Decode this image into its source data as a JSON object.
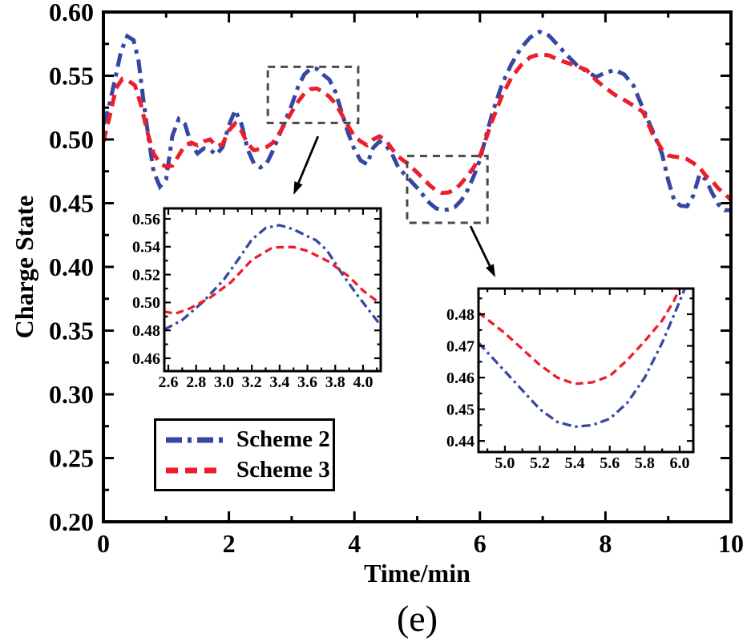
{
  "figure": {
    "caption": "(e)",
    "x_axis_title": "Time/min",
    "y_axis_title": "Charge State",
    "colors": {
      "scheme2": "#3647A3",
      "scheme3": "#EC1E2A",
      "zoom_box": "#4a4a4a",
      "axis": "#000000"
    }
  },
  "legend": {
    "items": [
      {
        "label": "Scheme 2",
        "color": "#3647A3",
        "dash": "20 7 5 7"
      },
      {
        "label": "Scheme 3",
        "color": "#EC1E2A",
        "dash": "15 9"
      }
    ]
  },
  "chart_data": [
    {
      "id": "main",
      "type": "line",
      "title": "",
      "xlabel": "Time/min",
      "ylabel": "Charge State",
      "xlim": [
        0,
        10
      ],
      "ylim": [
        0.2,
        0.6
      ],
      "grid": false,
      "legend_position": "lower-left",
      "xticks": {
        "values": [
          0,
          2,
          4,
          6,
          8,
          10
        ],
        "labels": [
          "0",
          "2",
          "4",
          "6",
          "8",
          "10"
        ],
        "minor": [
          1,
          3,
          5,
          7,
          9
        ]
      },
      "yticks": {
        "values": [
          0.2,
          0.25,
          0.3,
          0.35,
          0.4,
          0.45,
          0.5,
          0.55,
          0.6
        ],
        "labels": [
          "0.20",
          "0.25",
          "0.30",
          "0.35",
          "0.40",
          "0.45",
          "0.50",
          "0.55",
          "0.60"
        ],
        "minor": [
          0.225,
          0.275,
          0.325,
          0.375,
          0.425,
          0.475,
          0.525,
          0.575
        ]
      },
      "series": [
        {
          "name": "Scheme 2",
          "color": "#3647A3",
          "style": "dashdot",
          "x": [
            0,
            0.08,
            0.18,
            0.28,
            0.38,
            0.48,
            0.56,
            0.64,
            0.72,
            0.8,
            0.9,
            1.0,
            1.1,
            1.2,
            1.3,
            1.4,
            1.5,
            1.6,
            1.7,
            1.8,
            1.9,
            2.0,
            2.1,
            2.2,
            2.3,
            2.4,
            2.5,
            2.6,
            2.7,
            2.8,
            2.9,
            3.0,
            3.1,
            3.2,
            3.3,
            3.4,
            3.5,
            3.6,
            3.7,
            3.8,
            3.9,
            4.0,
            4.1,
            4.2,
            4.3,
            4.4,
            4.5,
            4.6,
            4.7,
            4.85,
            5.0,
            5.1,
            5.2,
            5.3,
            5.4,
            5.5,
            5.6,
            5.7,
            5.8,
            5.9,
            6.0,
            6.1,
            6.2,
            6.35,
            6.5,
            6.65,
            6.8,
            6.95,
            7.1,
            7.25,
            7.4,
            7.55,
            7.7,
            7.85,
            8.0,
            8.15,
            8.3,
            8.45,
            8.6,
            8.75,
            8.9,
            9.0,
            9.1,
            9.2,
            9.3,
            9.4,
            9.5,
            9.6,
            9.7,
            9.8,
            9.9,
            10
          ],
          "y": [
            0.512,
            0.524,
            0.546,
            0.569,
            0.581,
            0.578,
            0.562,
            0.53,
            0.501,
            0.475,
            0.463,
            0.469,
            0.503,
            0.516,
            0.512,
            0.496,
            0.489,
            0.493,
            0.492,
            0.488,
            0.494,
            0.511,
            0.523,
            0.512,
            0.492,
            0.481,
            0.478,
            0.481,
            0.491,
            0.503,
            0.515,
            0.527,
            0.541,
            0.551,
            0.5555,
            0.5555,
            0.551,
            0.547,
            0.537,
            0.521,
            0.505,
            0.492,
            0.4835,
            0.4805,
            0.4935,
            0.4985,
            0.4955,
            0.4885,
            0.478,
            0.47,
            0.462,
            0.456,
            0.45,
            0.446,
            0.4445,
            0.445,
            0.447,
            0.452,
            0.46,
            0.471,
            0.484,
            0.503,
            0.521,
            0.543,
            0.559,
            0.5715,
            0.58,
            0.5845,
            0.5815,
            0.5735,
            0.5655,
            0.558,
            0.5535,
            0.549,
            0.5525,
            0.5545,
            0.551,
            0.542,
            0.524,
            0.507,
            0.489,
            0.468,
            0.4515,
            0.448,
            0.4475,
            0.456,
            0.4725,
            0.4685,
            0.458,
            0.449,
            0.4445,
            0.4445
          ]
        },
        {
          "name": "Scheme 3",
          "color": "#EC1E2A",
          "style": "dash",
          "x": [
            0,
            0.1,
            0.2,
            0.3,
            0.4,
            0.5,
            0.6,
            0.7,
            0.8,
            0.9,
            1.0,
            1.1,
            1.2,
            1.3,
            1.4,
            1.5,
            1.6,
            1.7,
            1.8,
            1.9,
            2.0,
            2.1,
            2.2,
            2.3,
            2.4,
            2.5,
            2.6,
            2.7,
            2.8,
            2.9,
            3.0,
            3.1,
            3.2,
            3.3,
            3.4,
            3.5,
            3.6,
            3.7,
            3.8,
            3.9,
            4.0,
            4.1,
            4.2,
            4.3,
            4.4,
            4.5,
            4.6,
            4.7,
            4.85,
            5.0,
            5.1,
            5.2,
            5.3,
            5.4,
            5.5,
            5.6,
            5.7,
            5.8,
            5.9,
            6.0,
            6.1,
            6.2,
            6.35,
            6.5,
            6.65,
            6.8,
            6.95,
            7.1,
            7.25,
            7.4,
            7.55,
            7.7,
            7.85,
            8.0,
            8.15,
            8.3,
            8.45,
            8.6,
            8.75,
            8.9,
            9.0,
            9.1,
            9.2,
            9.3,
            9.4,
            9.5,
            9.6,
            9.7,
            9.8,
            9.9,
            10
          ],
          "y": [
            0.498,
            0.518,
            0.54,
            0.5475,
            0.546,
            0.5425,
            0.527,
            0.506,
            0.489,
            0.4815,
            0.4785,
            0.4795,
            0.4875,
            0.4955,
            0.4975,
            0.4955,
            0.4985,
            0.5,
            0.4945,
            0.4965,
            0.507,
            0.5125,
            0.5065,
            0.4965,
            0.4915,
            0.4925,
            0.494,
            0.4975,
            0.5045,
            0.513,
            0.5215,
            0.5295,
            0.536,
            0.5395,
            0.54,
            0.5375,
            0.5335,
            0.528,
            0.5195,
            0.5105,
            0.5025,
            0.4985,
            0.4955,
            0.5,
            0.5025,
            0.4995,
            0.4925,
            0.4865,
            0.481,
            0.474,
            0.469,
            0.464,
            0.46,
            0.458,
            0.4585,
            0.4605,
            0.4655,
            0.4715,
            0.478,
            0.487,
            0.501,
            0.5155,
            0.534,
            0.5485,
            0.558,
            0.5645,
            0.567,
            0.566,
            0.5625,
            0.56,
            0.5575,
            0.5545,
            0.5465,
            0.5405,
            0.535,
            0.531,
            0.5265,
            0.5215,
            0.5045,
            0.492,
            0.4875,
            0.4865,
            0.486,
            0.4845,
            0.4815,
            0.478,
            0.4715,
            0.4675,
            0.4615,
            0.4575,
            0.4525
          ]
        }
      ],
      "annotations": {
        "rects": [
          {
            "x0": 2.62,
            "x1": 4.06,
            "y0": 0.513,
            "y1": 0.557
          },
          {
            "x0": 4.84,
            "x1": 6.12,
            "y0": 0.4346,
            "y1": 0.487
          }
        ],
        "arrows": [
          {
            "x0": 3.42,
            "y0": 0.5025,
            "x1": 3.03,
            "y1": 0.4566
          },
          {
            "x0": 5.85,
            "y0": 0.432,
            "x1": 6.245,
            "y1": 0.3918
          }
        ]
      }
    },
    {
      "id": "inset1",
      "type": "line",
      "title": "zoom of peak near t=3.3",
      "xlim": [
        2.571,
        4.127
      ],
      "ylim": [
        0.4508,
        0.5675
      ],
      "grid": false,
      "xticks": {
        "values": [
          2.6,
          2.8,
          3.0,
          3.2,
          3.4,
          3.6,
          3.8,
          4.0
        ],
        "labels": [
          "2.6",
          "2.8",
          "3.0",
          "3.2",
          "3.4",
          "3.6",
          "3.8",
          "4.0"
        ],
        "minor": [
          2.7,
          2.9,
          3.1,
          3.3,
          3.5,
          3.7,
          3.9,
          4.1
        ]
      },
      "yticks": {
        "values": [
          0.46,
          0.48,
          0.5,
          0.52,
          0.54,
          0.56
        ],
        "labels": [
          "0.46",
          "0.48",
          "0.50",
          "0.52",
          "0.54",
          "0.56"
        ],
        "minor": [
          0.47,
          0.49,
          0.51,
          0.53,
          0.55
        ]
      },
      "series": [
        {
          "name": "Scheme 2",
          "color": "#3647A3",
          "style": "dashdot",
          "x": [
            2.571,
            2.7,
            2.85,
            3.0,
            3.1,
            3.2,
            3.3,
            3.4,
            3.5,
            3.6,
            3.66,
            3.74,
            3.85,
            3.95,
            4.05,
            4.127
          ],
          "y": [
            0.4805,
            0.4875,
            0.5005,
            0.5165,
            0.5305,
            0.545,
            0.5535,
            0.5555,
            0.5525,
            0.5475,
            0.5448,
            0.5375,
            0.5205,
            0.5065,
            0.4935,
            0.4835
          ]
        },
        {
          "name": "Scheme 3",
          "color": "#EC1E2A",
          "style": "dash",
          "x": [
            2.571,
            2.65,
            2.75,
            2.9,
            3.05,
            3.2,
            3.35,
            3.5,
            3.6,
            3.75,
            3.9,
            4.0,
            4.1,
            4.127
          ],
          "y": [
            0.4935,
            0.492,
            0.4955,
            0.5035,
            0.5145,
            0.5305,
            0.5395,
            0.5398,
            0.537,
            0.5295,
            0.5185,
            0.5085,
            0.501,
            0.4998
          ]
        }
      ]
    },
    {
      "id": "inset2",
      "type": "line",
      "title": "zoom of valley near t=5.4",
      "xlim": [
        4.849,
        6.078
      ],
      "ylim": [
        0.4365,
        0.4881
      ],
      "grid": false,
      "xticks": {
        "values": [
          5.0,
          5.2,
          5.4,
          5.6,
          5.8,
          6.0
        ],
        "labels": [
          "5.0",
          "5.2",
          "5.4",
          "5.6",
          "5.8",
          "6.0"
        ],
        "minor": [
          4.9,
          5.1,
          5.3,
          5.5,
          5.7,
          5.9
        ]
      },
      "yticks": {
        "values": [
          0.44,
          0.45,
          0.46,
          0.47,
          0.48
        ],
        "labels": [
          "0.44",
          "0.45",
          "0.46",
          "0.47",
          "0.48"
        ],
        "minor": [
          0.445,
          0.455,
          0.465,
          0.475,
          0.485
        ]
      },
      "series": [
        {
          "name": "Scheme 2",
          "color": "#3647A3",
          "style": "dashdot",
          "x": [
            4.849,
            5.0,
            5.1,
            5.2,
            5.3,
            5.4,
            5.5,
            5.6,
            5.7,
            5.8,
            5.9,
            6.0,
            6.06
          ],
          "y": [
            0.471,
            0.462,
            0.456,
            0.45,
            0.446,
            0.4445,
            0.445,
            0.447,
            0.452,
            0.46,
            0.471,
            0.484,
            0.4925
          ]
        },
        {
          "name": "Scheme 3",
          "color": "#EC1E2A",
          "style": "dash",
          "x": [
            4.849,
            5.0,
            5.1,
            5.2,
            5.3,
            5.4,
            5.5,
            5.6,
            5.7,
            5.8,
            5.9,
            5.97,
            6.03
          ],
          "y": [
            0.4805,
            0.474,
            0.469,
            0.464,
            0.46,
            0.458,
            0.4585,
            0.4605,
            0.4655,
            0.4715,
            0.478,
            0.4845,
            0.492
          ]
        }
      ]
    }
  ]
}
